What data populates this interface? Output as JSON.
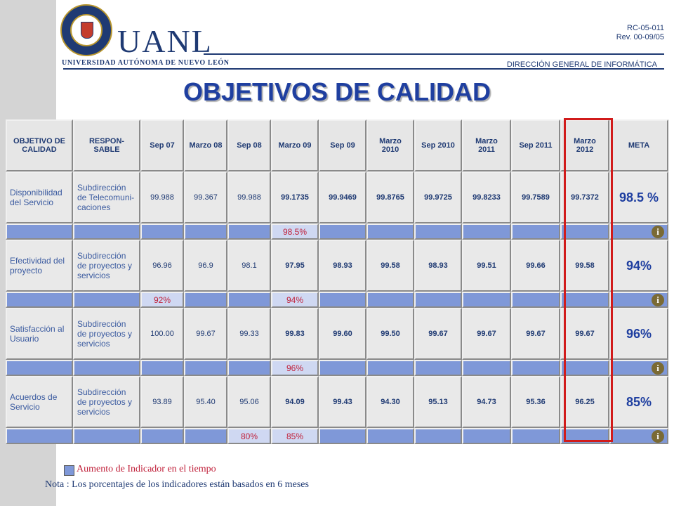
{
  "header": {
    "logo_text": "UANL",
    "university": "UNIVERSIDAD AUTÓNOMA DE NUEVO LEÓN",
    "seal_text": "UNIVERSIDAD AUTÓNOMA DE NUEVO LEÓN",
    "doc_code": "RC-05-011",
    "revision": "Rev. 00-09/05",
    "department": "DIRECCIÓN GENERAL DE INFORMÁTICA"
  },
  "title": "OBJETIVOS DE CALIDAD",
  "table": {
    "columns": [
      "OBJETIVO DE CALIDAD",
      "RESPON-SABLE",
      "Sep 07",
      "Marzo 08",
      "Sep 08",
      "Marzo 09",
      "Sep 09",
      "Marzo 2010",
      "Sep 2010",
      "Marzo 2011",
      "Sep 2011",
      "Marzo 2012",
      "META"
    ],
    "rows": [
      {
        "objective": "Disponibilidad del Servicio",
        "responsible": "Subdirección de Telecomuni-caciones",
        "values": [
          "99.988",
          "99.367",
          "99.988",
          "99.1735",
          "99.9469",
          "99.8765",
          "99.9725",
          "99.8233",
          "99.7589",
          "99.7372"
        ],
        "goal": "98.5 %",
        "targets": [
          "",
          "",
          "",
          "",
          "",
          "98.5%",
          "",
          "",
          "",
          "",
          "",
          ""
        ]
      },
      {
        "objective": "Efectividad del proyecto",
        "responsible": "Subdirección de proyectos y servicios",
        "values": [
          "96.96",
          "96.9",
          "98.1",
          "97.95",
          "98.93",
          "99.58",
          "98.93",
          "99.51",
          "99.66",
          "99.58"
        ],
        "goal": "94%",
        "targets": [
          "",
          "",
          "92%",
          "",
          "",
          "94%",
          "",
          "",
          "",
          "",
          "",
          ""
        ]
      },
      {
        "objective": "Satisfacción al Usuario",
        "responsible": "Subdirección de proyectos y servicios",
        "values": [
          "100.00",
          "99.67",
          "99.33",
          "99.83",
          "99.60",
          "99.50",
          "99.67",
          "99.67",
          "99.67",
          "99.67"
        ],
        "goal": "96%",
        "targets": [
          "",
          "",
          "",
          "",
          "",
          "96%",
          "",
          "",
          "",
          "",
          "",
          ""
        ]
      },
      {
        "objective": "Acuerdos de Servicio",
        "responsible": "Subdirección de proyectos y servicios",
        "values": [
          "93.89",
          "95.40",
          "95.06",
          "94.09",
          "99.43",
          "94.30",
          "95.13",
          "94.73",
          "95.36",
          "96.25"
        ],
        "goal": "85%",
        "targets": [
          "",
          "",
          "",
          "",
          "80%",
          "85%",
          "",
          "",
          "",
          "",
          "",
          ""
        ]
      }
    ],
    "info_icon_glyph": "i",
    "highlight_color": "#d11b1b",
    "target_bar_color": "#7f98d8"
  },
  "legend": {
    "text": "Aumento de Indicador en el tiempo"
  },
  "note": "Nota : Los porcentajes de los indicadores están basados en 6 meses"
}
